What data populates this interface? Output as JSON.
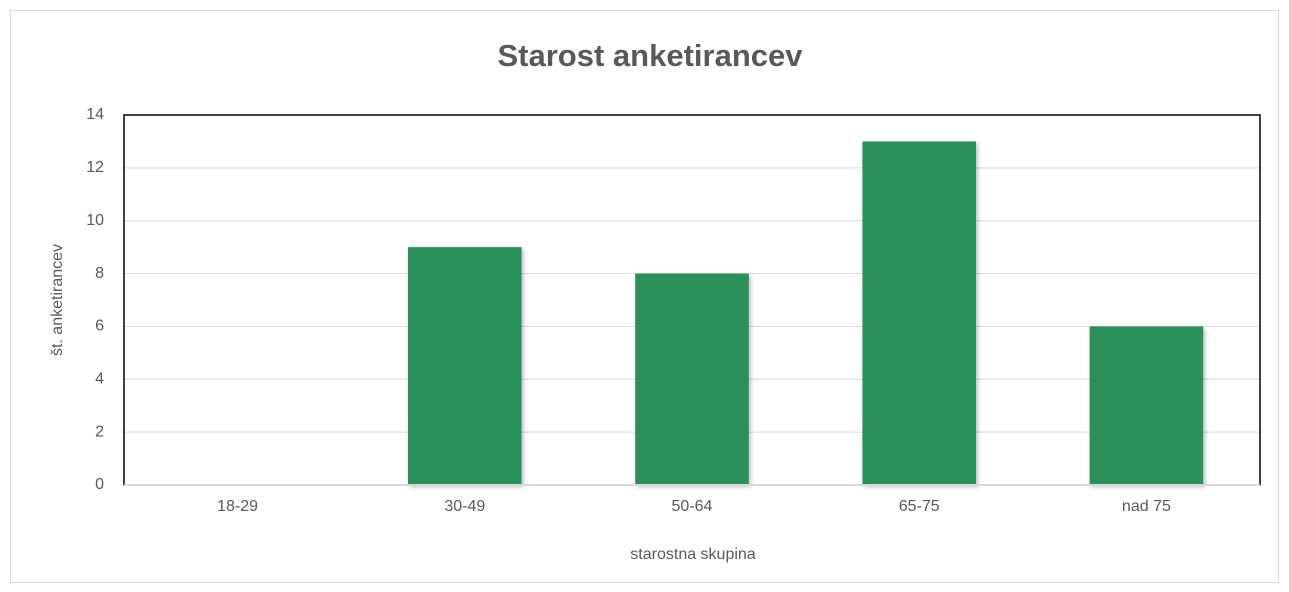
{
  "chart_data": {
    "type": "bar",
    "title": "Starost anketirancev",
    "x_label": "starostna skupina",
    "y_label": "št. anketirancev",
    "categories": [
      "18-29",
      "30-49",
      "50-64",
      "65-75",
      "nad 75"
    ],
    "values": [
      0,
      9,
      8,
      13,
      6
    ],
    "color": "#2a8f58",
    "ylim": [
      0,
      14
    ],
    "yticks": [
      0,
      2,
      4,
      6,
      8,
      10,
      12,
      14
    ],
    "grid": true
  }
}
